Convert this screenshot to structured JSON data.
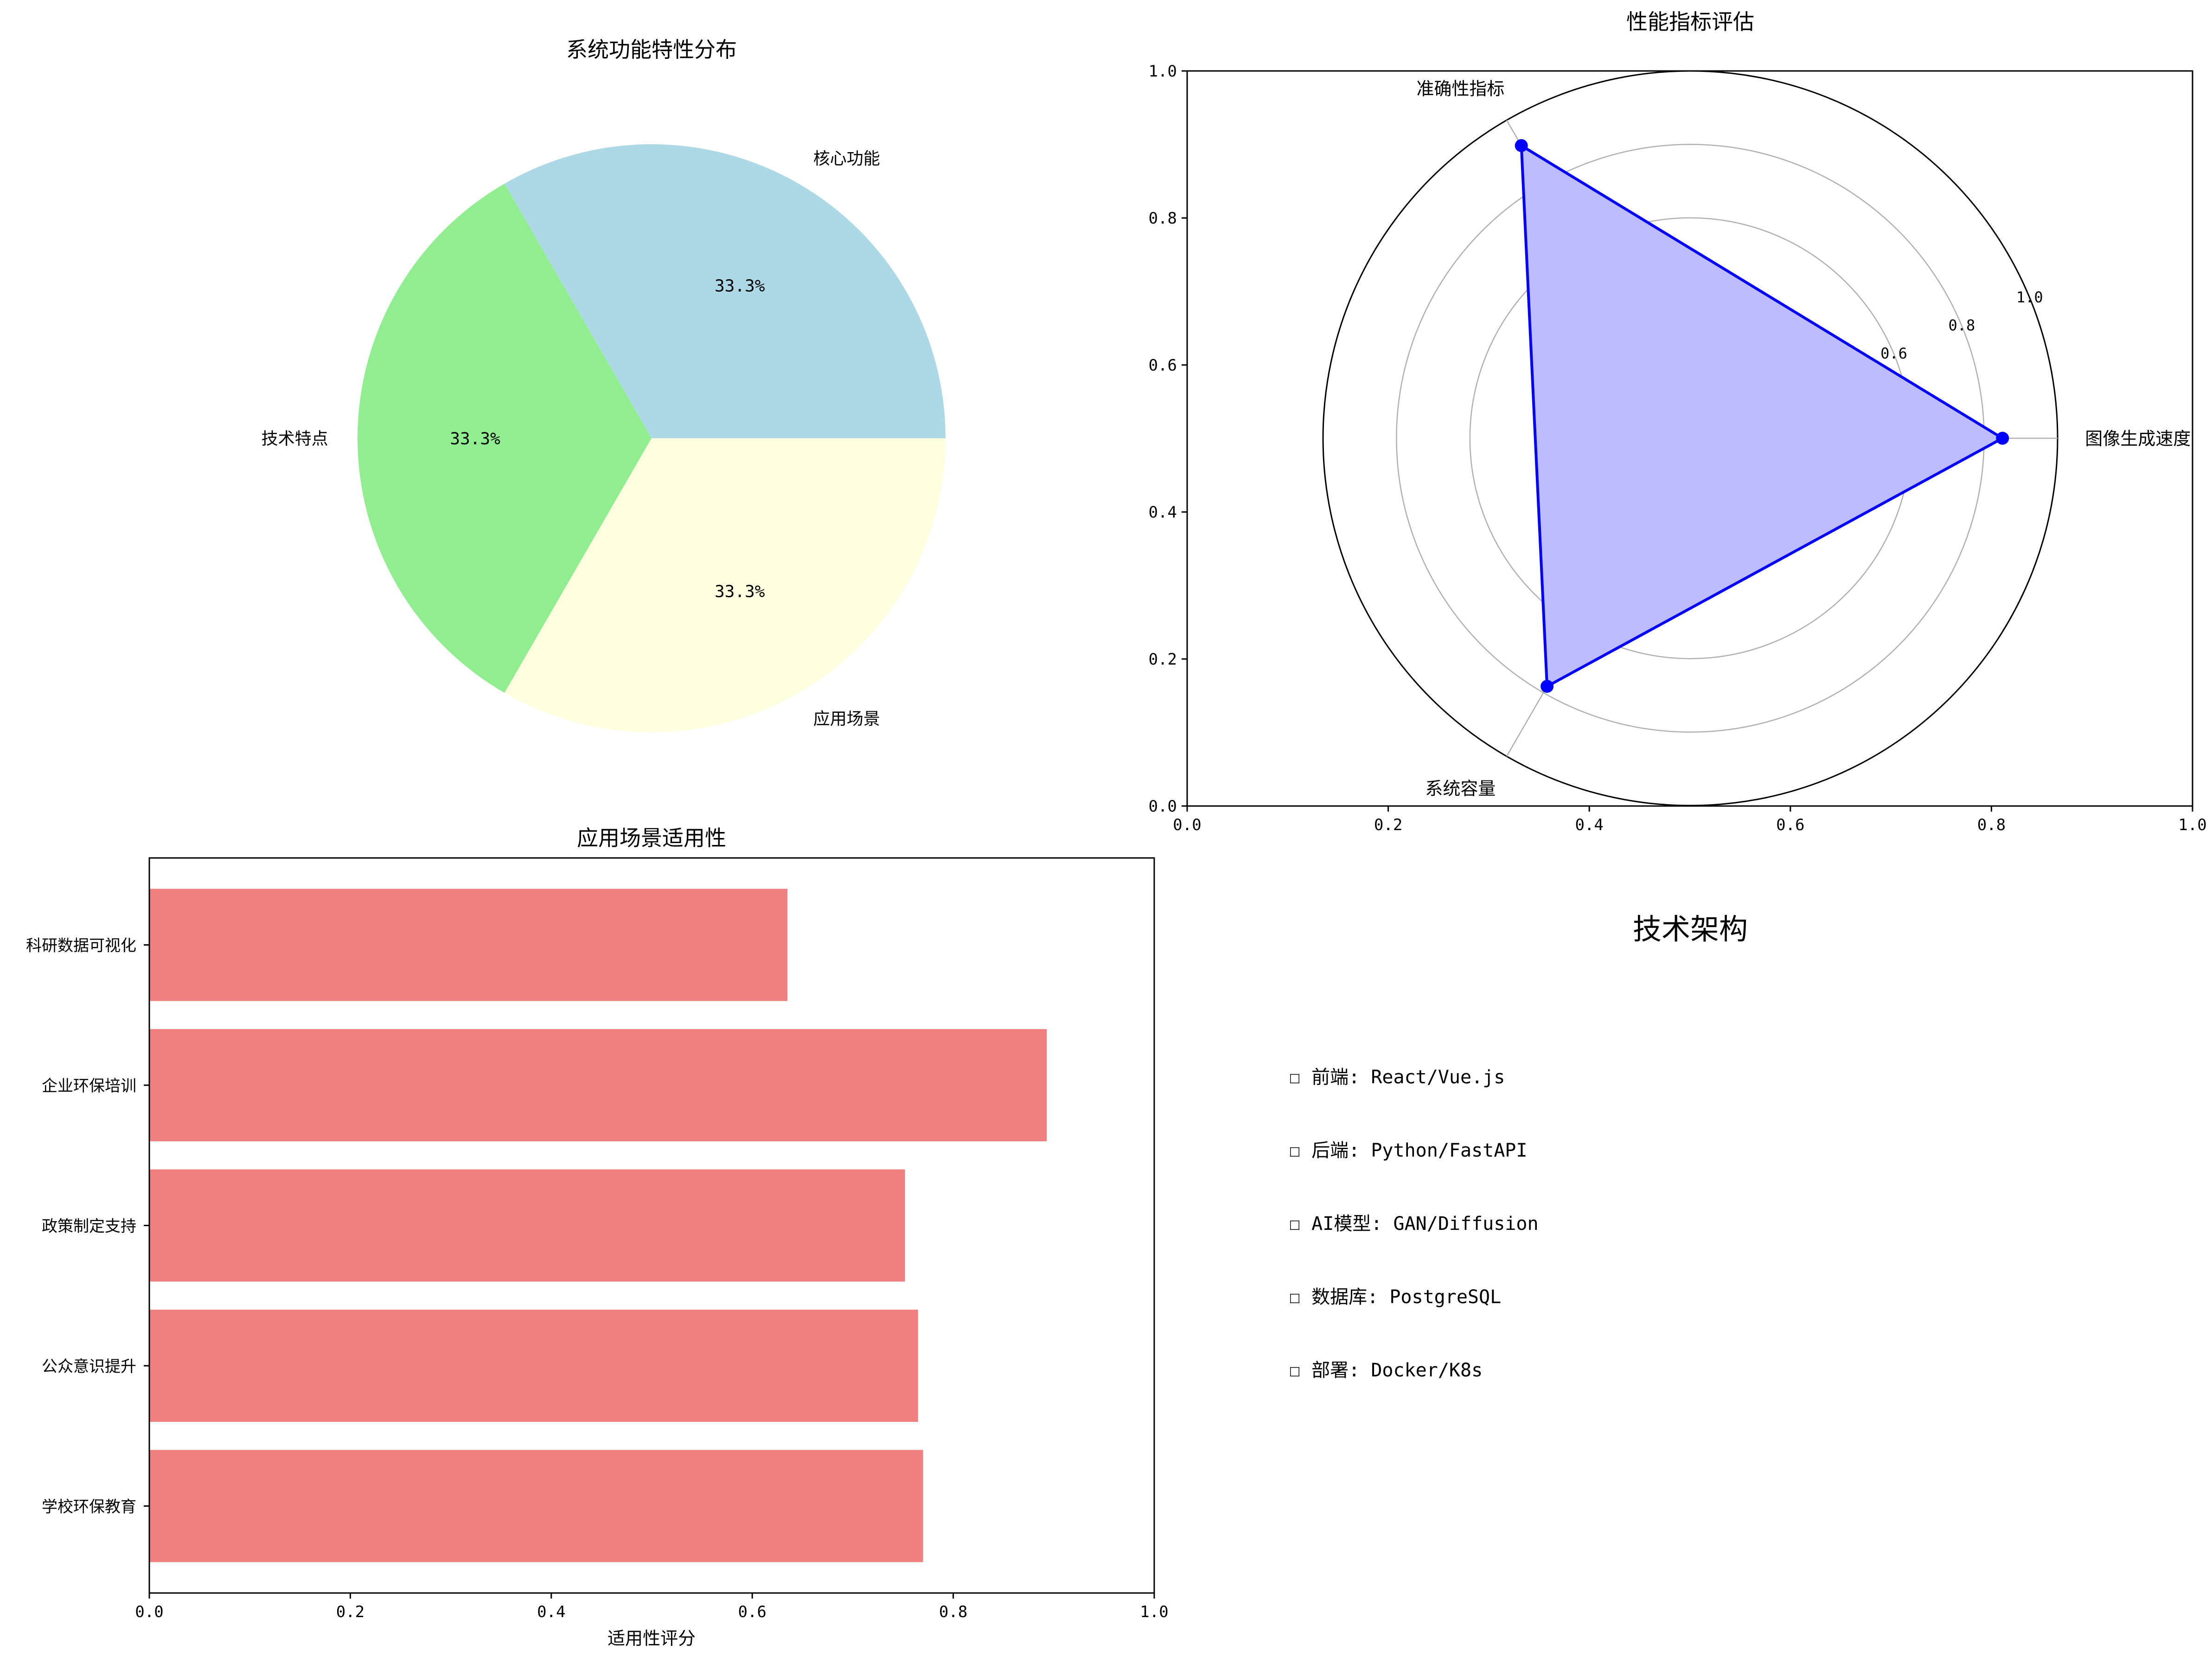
{
  "chart_data": [
    {
      "type": "pie",
      "title": "系统功能特性分布",
      "categories": [
        "核心功能",
        "技术特点",
        "应用场景"
      ],
      "values": [
        33.3,
        33.3,
        33.3
      ],
      "value_labels": [
        "33.3%",
        "33.3%",
        "33.3%"
      ],
      "colors": [
        "#add8e6",
        "#90ee90",
        "#ffffe0"
      ]
    },
    {
      "type": "radar",
      "title": "性能指标评估",
      "categories": [
        "图像生成速度",
        "准确性指标",
        "系统容量"
      ],
      "values": [
        0.85,
        0.92,
        0.78
      ],
      "r_ticks": [
        "0.2",
        "0.4",
        "0.6",
        "0.8",
        "1.0"
      ],
      "r_range": [
        0,
        1
      ],
      "background_axes": {
        "xlim": [
          0,
          1
        ],
        "ylim": [
          0,
          1
        ],
        "x_ticks": [
          "0.0",
          "0.2",
          "0.4",
          "0.6",
          "0.8",
          "1.0"
        ],
        "y_ticks": [
          "0.0",
          "0.2",
          "0.4",
          "0.6",
          "0.8",
          "1.0"
        ]
      },
      "line_color": "#0000ff",
      "fill_color": "#bcbcff"
    },
    {
      "type": "bar",
      "orientation": "horizontal",
      "title": "应用场景适用性",
      "categories": [
        "学校环保教育",
        "公众意识提升",
        "政策制定支持",
        "企业环保培训",
        "科研数据可视化"
      ],
      "values": [
        0.77,
        0.765,
        0.752,
        0.893,
        0.635
      ],
      "xlabel": "适用性评分",
      "xlim": [
        0,
        1
      ],
      "x_ticks": [
        "0.0",
        "0.2",
        "0.4",
        "0.6",
        "0.8",
        "1.0"
      ],
      "bar_color": "#f08080"
    }
  ],
  "tech": {
    "title": "技术架构",
    "items": [
      "☐ 前端: React/Vue.js",
      "☐ 后端: Python/FastAPI",
      "☐ AI模型: GAN/Diffusion",
      "☐ 数据库: PostgreSQL",
      "☐ 部署: Docker/K8s"
    ]
  }
}
